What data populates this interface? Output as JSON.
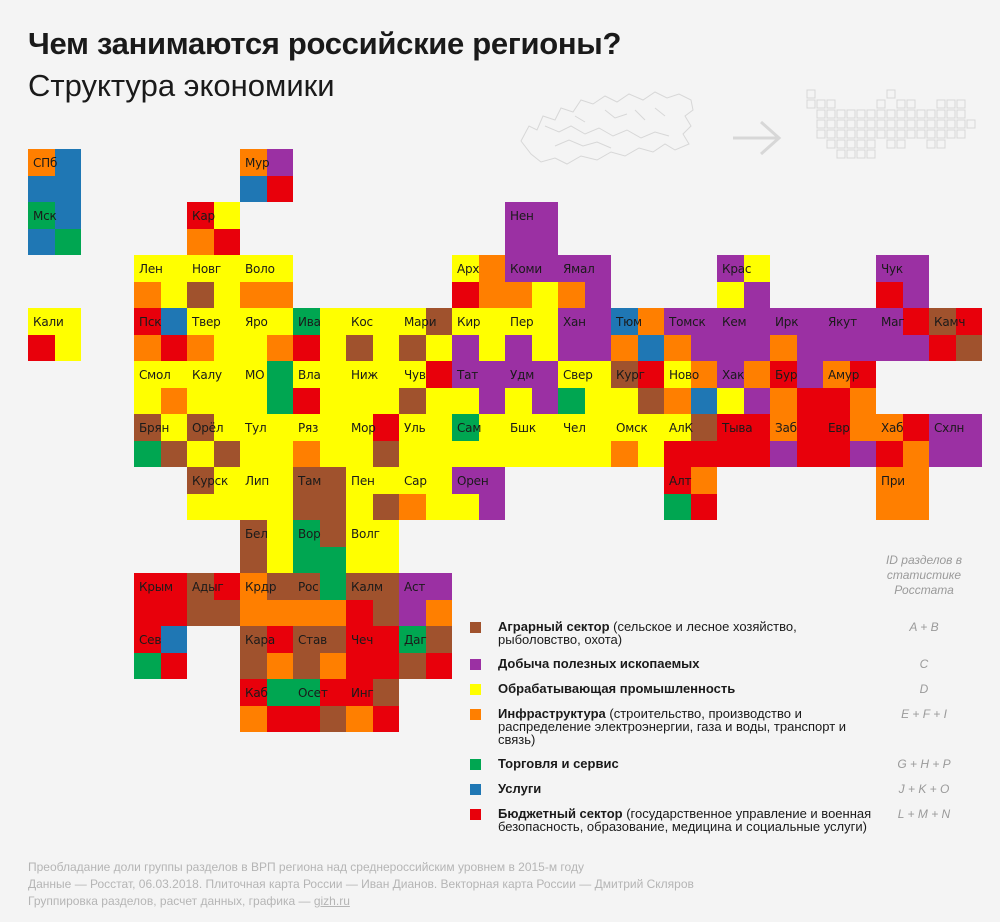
{
  "title": "Чем занимаются российские регионы?",
  "subtitle": "Структура экономики",
  "colors": {
    "agr": "#a0522d",
    "min": "#9b30a3",
    "man": "#ffff00",
    "inf": "#ff7f00",
    "trd": "#00a651",
    "srv": "#1f77b4",
    "bud": "#e8000b"
  },
  "legend_header": "ID разделов в статистике Росстата",
  "legend": [
    {
      "key": "agr",
      "name": "Аграрный сектор",
      "desc": " (сельское и лесное хозяйство, рыболовство, охота)",
      "ids": "A + B"
    },
    {
      "key": "min",
      "name": "Добыча полезных ископаемых",
      "desc": "",
      "ids": "C"
    },
    {
      "key": "man",
      "name": "Обрабатывающая промышленность",
      "desc": "",
      "ids": "D"
    },
    {
      "key": "inf",
      "name": "Инфраструктура",
      "desc": " (строительство, производство и распределение электроэнергии, газа и воды, транспорт и связь)",
      "ids": "E + F + I"
    },
    {
      "key": "trd",
      "name": "Торговля и сервис",
      "desc": "",
      "ids": "G + H + P"
    },
    {
      "key": "srv",
      "name": "Услуги",
      "desc": "",
      "ids": "J + K + O"
    },
    {
      "key": "bud",
      "name": "Бюджетный сектор",
      "desc": " (государственное управление и военная безопасность, образование, медицина и социальные услуги)",
      "ids": "L + M + N"
    }
  ],
  "footer": {
    "line1": "Преобладание доли группы разделов в ВРП региона над среднероссийским уровнем в 2015-м году",
    "line2": "Данные — Росстат, 06.03.2018. Плиточная карта России — Иван Дианов. Векторная карта России — Дмитрий Скляров",
    "line3_prefix": "Группировка разделов, расчет данных, графика — ",
    "line3_link": "gizh.ru"
  },
  "regions": [
    {
      "label": "СПб",
      "col": 0,
      "row": 0,
      "q": [
        "inf",
        "srv",
        "srv",
        "srv"
      ]
    },
    {
      "label": "Мск",
      "col": 0,
      "row": 1,
      "q": [
        "trd",
        "srv",
        "srv",
        "trd"
      ]
    },
    {
      "label": "Мур",
      "col": 4,
      "row": 0,
      "q": [
        "inf",
        "min",
        "srv",
        "bud"
      ]
    },
    {
      "label": "Кар",
      "col": 3,
      "row": 1,
      "q": [
        "bud",
        "man",
        "inf",
        "bud"
      ]
    },
    {
      "label": "Нен",
      "col": 9,
      "row": 1,
      "q": [
        "min",
        "min",
        "min",
        "min"
      ]
    },
    {
      "label": "Лен",
      "col": 2,
      "row": 2,
      "q": [
        "man",
        "man",
        "inf",
        "man"
      ]
    },
    {
      "label": "Новг",
      "col": 3,
      "row": 2,
      "q": [
        "man",
        "man",
        "agr",
        "man"
      ]
    },
    {
      "label": "Воло",
      "col": 4,
      "row": 2,
      "q": [
        "man",
        "man",
        "inf",
        "inf"
      ]
    },
    {
      "label": "Арх",
      "col": 8,
      "row": 2,
      "q": [
        "man",
        "inf",
        "bud",
        "inf"
      ]
    },
    {
      "label": "Коми",
      "col": 9,
      "row": 2,
      "q": [
        "min",
        "min",
        "inf",
        "man"
      ]
    },
    {
      "label": "Ямал",
      "col": 10,
      "row": 2,
      "q": [
        "min",
        "min",
        "inf",
        "min"
      ]
    },
    {
      "label": "Крас",
      "col": 13,
      "row": 2,
      "q": [
        "min",
        "man",
        "man",
        "min"
      ]
    },
    {
      "label": "Чук",
      "col": 16,
      "row": 2,
      "q": [
        "min",
        "min",
        "bud",
        "min"
      ]
    },
    {
      "label": "Кали",
      "col": 0,
      "row": 3,
      "q": [
        "man",
        "man",
        "bud",
        "man"
      ]
    },
    {
      "label": "Пск",
      "col": 2,
      "row": 3,
      "q": [
        "bud",
        "srv",
        "inf",
        "bud"
      ]
    },
    {
      "label": "Твер",
      "col": 3,
      "row": 3,
      "q": [
        "man",
        "man",
        "inf",
        "man"
      ]
    },
    {
      "label": "Яро",
      "col": 4,
      "row": 3,
      "q": [
        "man",
        "man",
        "man",
        "inf"
      ]
    },
    {
      "label": "Ива",
      "col": 5,
      "row": 3,
      "q": [
        "trd",
        "man",
        "bud",
        "man"
      ]
    },
    {
      "label": "Кос",
      "col": 6,
      "row": 3,
      "q": [
        "man",
        "man",
        "agr",
        "man"
      ]
    },
    {
      "label": "Мари",
      "col": 7,
      "row": 3,
      "q": [
        "man",
        "agr",
        "agr",
        "man"
      ]
    },
    {
      "label": "Кир",
      "col": 8,
      "row": 3,
      "q": [
        "man",
        "man",
        "min",
        "man"
      ]
    },
    {
      "label": "Пер",
      "col": 9,
      "row": 3,
      "q": [
        "man",
        "man",
        "min",
        "man"
      ]
    },
    {
      "label": "Хан",
      "col": 10,
      "row": 3,
      "q": [
        "min",
        "min",
        "min",
        "min"
      ]
    },
    {
      "label": "Тюм",
      "col": 11,
      "row": 3,
      "q": [
        "srv",
        "inf",
        "inf",
        "srv"
      ]
    },
    {
      "label": "Томск",
      "col": 12,
      "row": 3,
      "q": [
        "min",
        "min",
        "inf",
        "min"
      ]
    },
    {
      "label": "Кем",
      "col": 13,
      "row": 3,
      "q": [
        "min",
        "min",
        "min",
        "min"
      ]
    },
    {
      "label": "Ирк",
      "col": 14,
      "row": 3,
      "q": [
        "min",
        "min",
        "inf",
        "min"
      ]
    },
    {
      "label": "Якут",
      "col": 15,
      "row": 3,
      "q": [
        "min",
        "min",
        "min",
        "min"
      ]
    },
    {
      "label": "Маг",
      "col": 16,
      "row": 3,
      "q": [
        "min",
        "bud",
        "min",
        "min"
      ]
    },
    {
      "label": "Камч",
      "col": 17,
      "row": 3,
      "q": [
        "agr",
        "bud",
        "bud",
        "agr"
      ]
    },
    {
      "label": "Смол",
      "col": 2,
      "row": 4,
      "q": [
        "man",
        "man",
        "man",
        "inf"
      ]
    },
    {
      "label": "Калу",
      "col": 3,
      "row": 4,
      "q": [
        "man",
        "man",
        "man",
        "man"
      ]
    },
    {
      "label": "МО",
      "col": 4,
      "row": 4,
      "q": [
        "man",
        "trd",
        "man",
        "trd"
      ],
      "hl": true
    },
    {
      "label": "Вла",
      "col": 5,
      "row": 4,
      "q": [
        "man",
        "man",
        "bud",
        "man"
      ]
    },
    {
      "label": "Ниж",
      "col": 6,
      "row": 4,
      "q": [
        "man",
        "man",
        "man",
        "man"
      ]
    },
    {
      "label": "Чув",
      "col": 7,
      "row": 4,
      "q": [
        "man",
        "bud",
        "agr",
        "man"
      ]
    },
    {
      "label": "Тат",
      "col": 8,
      "row": 4,
      "q": [
        "min",
        "min",
        "man",
        "min"
      ]
    },
    {
      "label": "Удм",
      "col": 9,
      "row": 4,
      "q": [
        "min",
        "min",
        "man",
        "min"
      ]
    },
    {
      "label": "Свер",
      "col": 10,
      "row": 4,
      "q": [
        "man",
        "man",
        "trd",
        "man"
      ]
    },
    {
      "label": "Кург",
      "col": 11,
      "row": 4,
      "q": [
        "agr",
        "bud",
        "man",
        "agr"
      ]
    },
    {
      "label": "Ново",
      "col": 12,
      "row": 4,
      "q": [
        "man",
        "inf",
        "inf",
        "srv"
      ]
    },
    {
      "label": "Хак",
      "col": 13,
      "row": 4,
      "q": [
        "min",
        "inf",
        "man",
        "min"
      ]
    },
    {
      "label": "Бур",
      "col": 14,
      "row": 4,
      "q": [
        "bud",
        "min",
        "inf",
        "bud"
      ]
    },
    {
      "label": "Амур",
      "col": 15,
      "row": 4,
      "q": [
        "inf",
        "bud",
        "bud",
        "inf"
      ]
    },
    {
      "label": "Брян",
      "col": 2,
      "row": 5,
      "q": [
        "agr",
        "man",
        "trd",
        "agr"
      ]
    },
    {
      "label": "Орёл",
      "col": 3,
      "row": 5,
      "q": [
        "agr",
        "man",
        "man",
        "agr"
      ]
    },
    {
      "label": "Тул",
      "col": 4,
      "row": 5,
      "q": [
        "man",
        "man",
        "man",
        "man"
      ]
    },
    {
      "label": "Ряз",
      "col": 5,
      "row": 5,
      "q": [
        "man",
        "man",
        "inf",
        "man"
      ]
    },
    {
      "label": "Мор",
      "col": 6,
      "row": 5,
      "q": [
        "man",
        "bud",
        "man",
        "agr"
      ]
    },
    {
      "label": "Уль",
      "col": 7,
      "row": 5,
      "q": [
        "man",
        "man",
        "man",
        "man"
      ]
    },
    {
      "label": "Сам",
      "col": 8,
      "row": 5,
      "q": [
        "trd",
        "man",
        "man",
        "man"
      ]
    },
    {
      "label": "Бшк",
      "col": 9,
      "row": 5,
      "q": [
        "man",
        "man",
        "man",
        "man"
      ]
    },
    {
      "label": "Чел",
      "col": 10,
      "row": 5,
      "q": [
        "man",
        "man",
        "man",
        "man"
      ]
    },
    {
      "label": "Омск",
      "col": 11,
      "row": 5,
      "q": [
        "man",
        "man",
        "inf",
        "man"
      ]
    },
    {
      "label": "АлК",
      "col": 12,
      "row": 5,
      "q": [
        "man",
        "agr",
        "bud",
        "bud"
      ]
    },
    {
      "label": "Тыва",
      "col": 13,
      "row": 5,
      "q": [
        "bud",
        "bud",
        "bud",
        "bud"
      ]
    },
    {
      "label": "Заб",
      "col": 14,
      "row": 5,
      "q": [
        "inf",
        "bud",
        "min",
        "bud"
      ]
    },
    {
      "label": "Евр",
      "col": 15,
      "row": 5,
      "q": [
        "bud",
        "inf",
        "bud",
        "min"
      ]
    },
    {
      "label": "Хаб",
      "col": 16,
      "row": 5,
      "q": [
        "inf",
        "bud",
        "bud",
        "inf"
      ]
    },
    {
      "label": "Схлн",
      "col": 17,
      "row": 5,
      "q": [
        "min",
        "min",
        "min",
        "min"
      ]
    },
    {
      "label": "Курск",
      "col": 3,
      "row": 6,
      "q": [
        "agr",
        "man",
        "man",
        "man"
      ]
    },
    {
      "label": "Лип",
      "col": 4,
      "row": 6,
      "q": [
        "man",
        "man",
        "man",
        "man"
      ]
    },
    {
      "label": "Там",
      "col": 5,
      "row": 6,
      "q": [
        "agr",
        "agr",
        "agr",
        "agr"
      ]
    },
    {
      "label": "Пен",
      "col": 6,
      "row": 6,
      "q": [
        "man",
        "man",
        "man",
        "agr"
      ]
    },
    {
      "label": "Сар",
      "col": 7,
      "row": 6,
      "q": [
        "man",
        "man",
        "inf",
        "man"
      ]
    },
    {
      "label": "Орен",
      "col": 8,
      "row": 6,
      "q": [
        "min",
        "min",
        "man",
        "min"
      ]
    },
    {
      "label": "Алт",
      "col": 12,
      "row": 6,
      "q": [
        "bud",
        "inf",
        "trd",
        "bud"
      ]
    },
    {
      "label": "При",
      "col": 16,
      "row": 6,
      "q": [
        "inf",
        "inf",
        "inf",
        "inf"
      ]
    },
    {
      "label": "Бел",
      "col": 4,
      "row": 7,
      "q": [
        "agr",
        "man",
        "agr",
        "man"
      ]
    },
    {
      "label": "Вор",
      "col": 5,
      "row": 7,
      "q": [
        "trd",
        "agr",
        "trd",
        "trd"
      ]
    },
    {
      "label": "Волг",
      "col": 6,
      "row": 7,
      "q": [
        "man",
        "man",
        "man",
        "man"
      ]
    },
    {
      "label": "Крым",
      "col": 2,
      "row": 8,
      "q": [
        "bud",
        "bud",
        "bud",
        "bud"
      ]
    },
    {
      "label": "Адыг",
      "col": 3,
      "row": 8,
      "q": [
        "agr",
        "bud",
        "agr",
        "agr"
      ]
    },
    {
      "label": "Крдр",
      "col": 4,
      "row": 8,
      "q": [
        "inf",
        "agr",
        "inf",
        "inf"
      ]
    },
    {
      "label": "Рос",
      "col": 5,
      "row": 8,
      "q": [
        "agr",
        "trd",
        "inf",
        "inf"
      ]
    },
    {
      "label": "Калм",
      "col": 6,
      "row": 8,
      "q": [
        "agr",
        "agr",
        "bud",
        "agr"
      ]
    },
    {
      "label": "Аст",
      "col": 7,
      "row": 8,
      "q": [
        "min",
        "min",
        "min",
        "inf"
      ]
    },
    {
      "label": "Сев",
      "col": 2,
      "row": 9,
      "q": [
        "bud",
        "srv",
        "trd",
        "bud"
      ]
    },
    {
      "label": "Кара",
      "col": 4,
      "row": 9,
      "q": [
        "agr",
        "bud",
        "agr",
        "inf"
      ]
    },
    {
      "label": "Став",
      "col": 5,
      "row": 9,
      "q": [
        "agr",
        "agr",
        "agr",
        "inf"
      ]
    },
    {
      "label": "Чеч",
      "col": 6,
      "row": 9,
      "q": [
        "bud",
        "bud",
        "bud",
        "bud"
      ]
    },
    {
      "label": "Даг",
      "col": 7,
      "row": 9,
      "q": [
        "trd",
        "agr",
        "agr",
        "bud"
      ]
    },
    {
      "label": "Каб",
      "col": 4,
      "row": 10,
      "q": [
        "bud",
        "trd",
        "inf",
        "bud"
      ]
    },
    {
      "label": "Осет",
      "col": 5,
      "row": 10,
      "q": [
        "trd",
        "bud",
        "bud",
        "agr"
      ]
    },
    {
      "label": "Инг",
      "col": 6,
      "row": 10,
      "q": [
        "bud",
        "agr",
        "inf",
        "bud"
      ]
    }
  ]
}
